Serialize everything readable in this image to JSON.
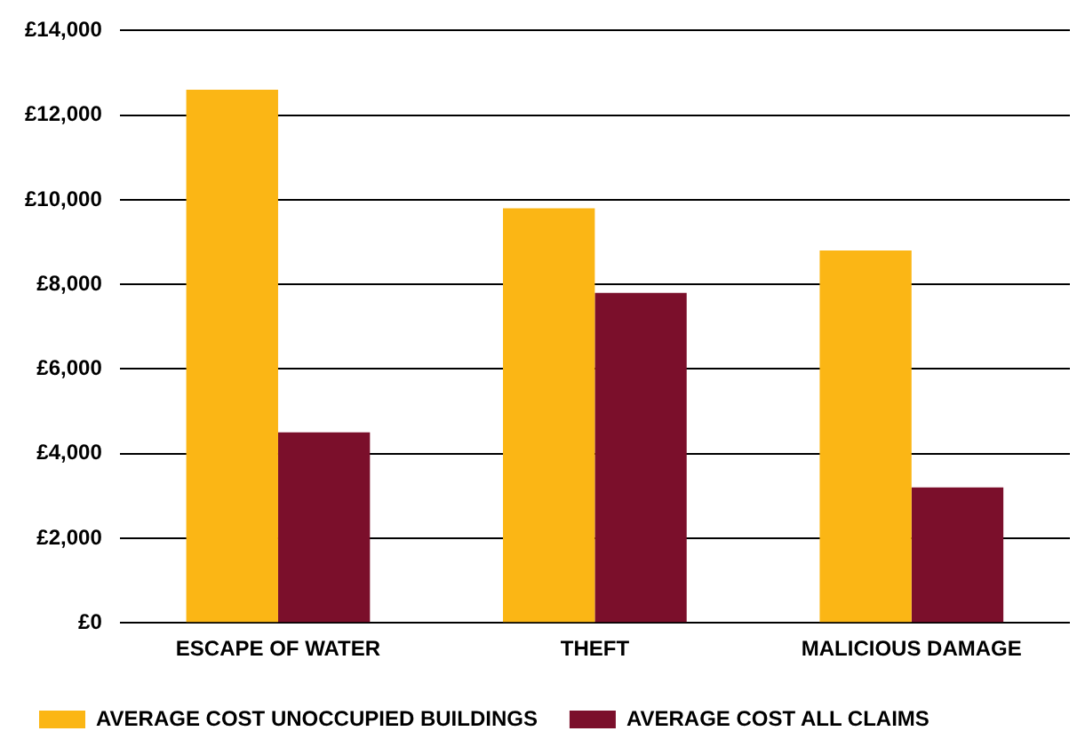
{
  "chart_data": {
    "type": "bar",
    "categories": [
      "ESCAPE OF WATER",
      "THEFT",
      "MALICIOUS DAMAGE"
    ],
    "series": [
      {
        "name": "AVERAGE COST UNOCCUPIED BUILDINGS",
        "color": "#fbb615",
        "values": [
          12600,
          9800,
          8800
        ]
      },
      {
        "name": "AVERAGE COST ALL CLAIMS",
        "color": "#7b0f2b",
        "values": [
          4500,
          7800,
          3200
        ]
      }
    ],
    "ylim": [
      0,
      14000
    ],
    "yticks": [
      {
        "value": 0,
        "label": "£0"
      },
      {
        "value": 2000,
        "label": "£2,000"
      },
      {
        "value": 4000,
        "label": "£4,000"
      },
      {
        "value": 6000,
        "label": "£6,000"
      },
      {
        "value": 8000,
        "label": "£8,000"
      },
      {
        "value": 10000,
        "label": "£10,000"
      },
      {
        "value": 12000,
        "label": "£12,000"
      },
      {
        "value": 14000,
        "label": "£14,000"
      }
    ],
    "grid": "y",
    "legend": "bottom left"
  }
}
